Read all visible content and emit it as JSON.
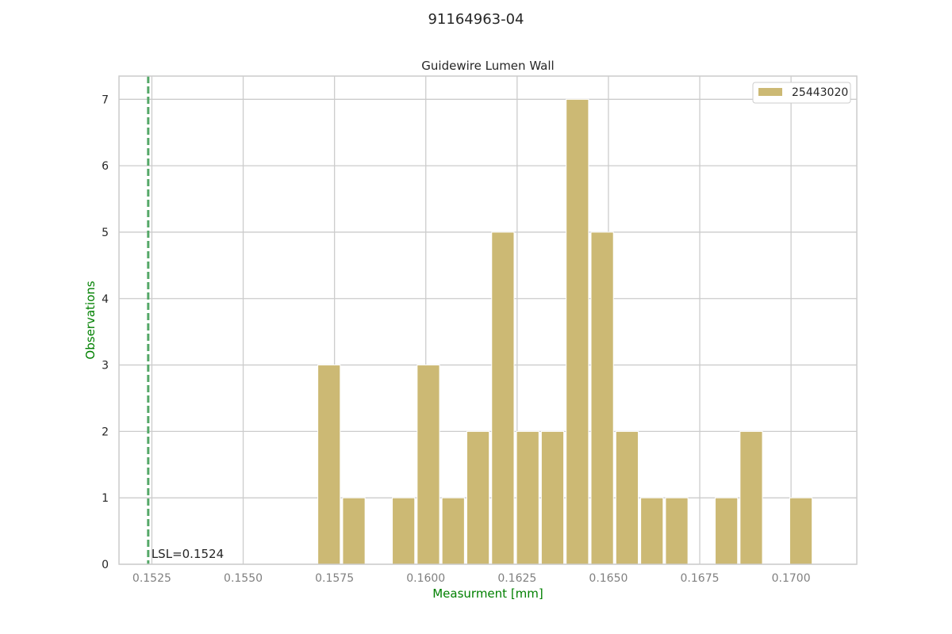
{
  "chart_data": {
    "type": "bar",
    "suptitle": "91164963-04",
    "title": "Guidewire Lumen Wall",
    "xlabel": "Measurment [mm]",
    "ylabel": "Observations",
    "xlim": [
      0.1516,
      0.1718
    ],
    "ylim": [
      0,
      7.35
    ],
    "xticks": [
      "0.1525",
      "0.1550",
      "0.1575",
      "0.1600",
      "0.1625",
      "0.1650",
      "0.1675",
      "0.1700"
    ],
    "yticks": [
      "0",
      "1",
      "2",
      "3",
      "4",
      "5",
      "6",
      "7"
    ],
    "grid": true,
    "bin_width": 0.000678,
    "series": [
      {
        "name": "25443020",
        "color": "#ccb974",
        "bins": [
          {
            "x": 0.15735,
            "count": 3
          },
          {
            "x": 0.15803,
            "count": 1
          },
          {
            "x": 0.15939,
            "count": 1
          },
          {
            "x": 0.16007,
            "count": 3
          },
          {
            "x": 0.16075,
            "count": 1
          },
          {
            "x": 0.16143,
            "count": 2
          },
          {
            "x": 0.16211,
            "count": 5
          },
          {
            "x": 0.16279,
            "count": 2
          },
          {
            "x": 0.16347,
            "count": 2
          },
          {
            "x": 0.16415,
            "count": 7
          },
          {
            "x": 0.16483,
            "count": 5
          },
          {
            "x": 0.16551,
            "count": 2
          },
          {
            "x": 0.16619,
            "count": 1
          },
          {
            "x": 0.16687,
            "count": 1
          },
          {
            "x": 0.16823,
            "count": 1
          },
          {
            "x": 0.16891,
            "count": 2
          },
          {
            "x": 0.17027,
            "count": 1
          }
        ]
      }
    ],
    "lsl": {
      "value": 0.1524,
      "label": "LSL=0.1524",
      "color": "#55a868"
    },
    "legend": {
      "placement": "top-right"
    }
  }
}
